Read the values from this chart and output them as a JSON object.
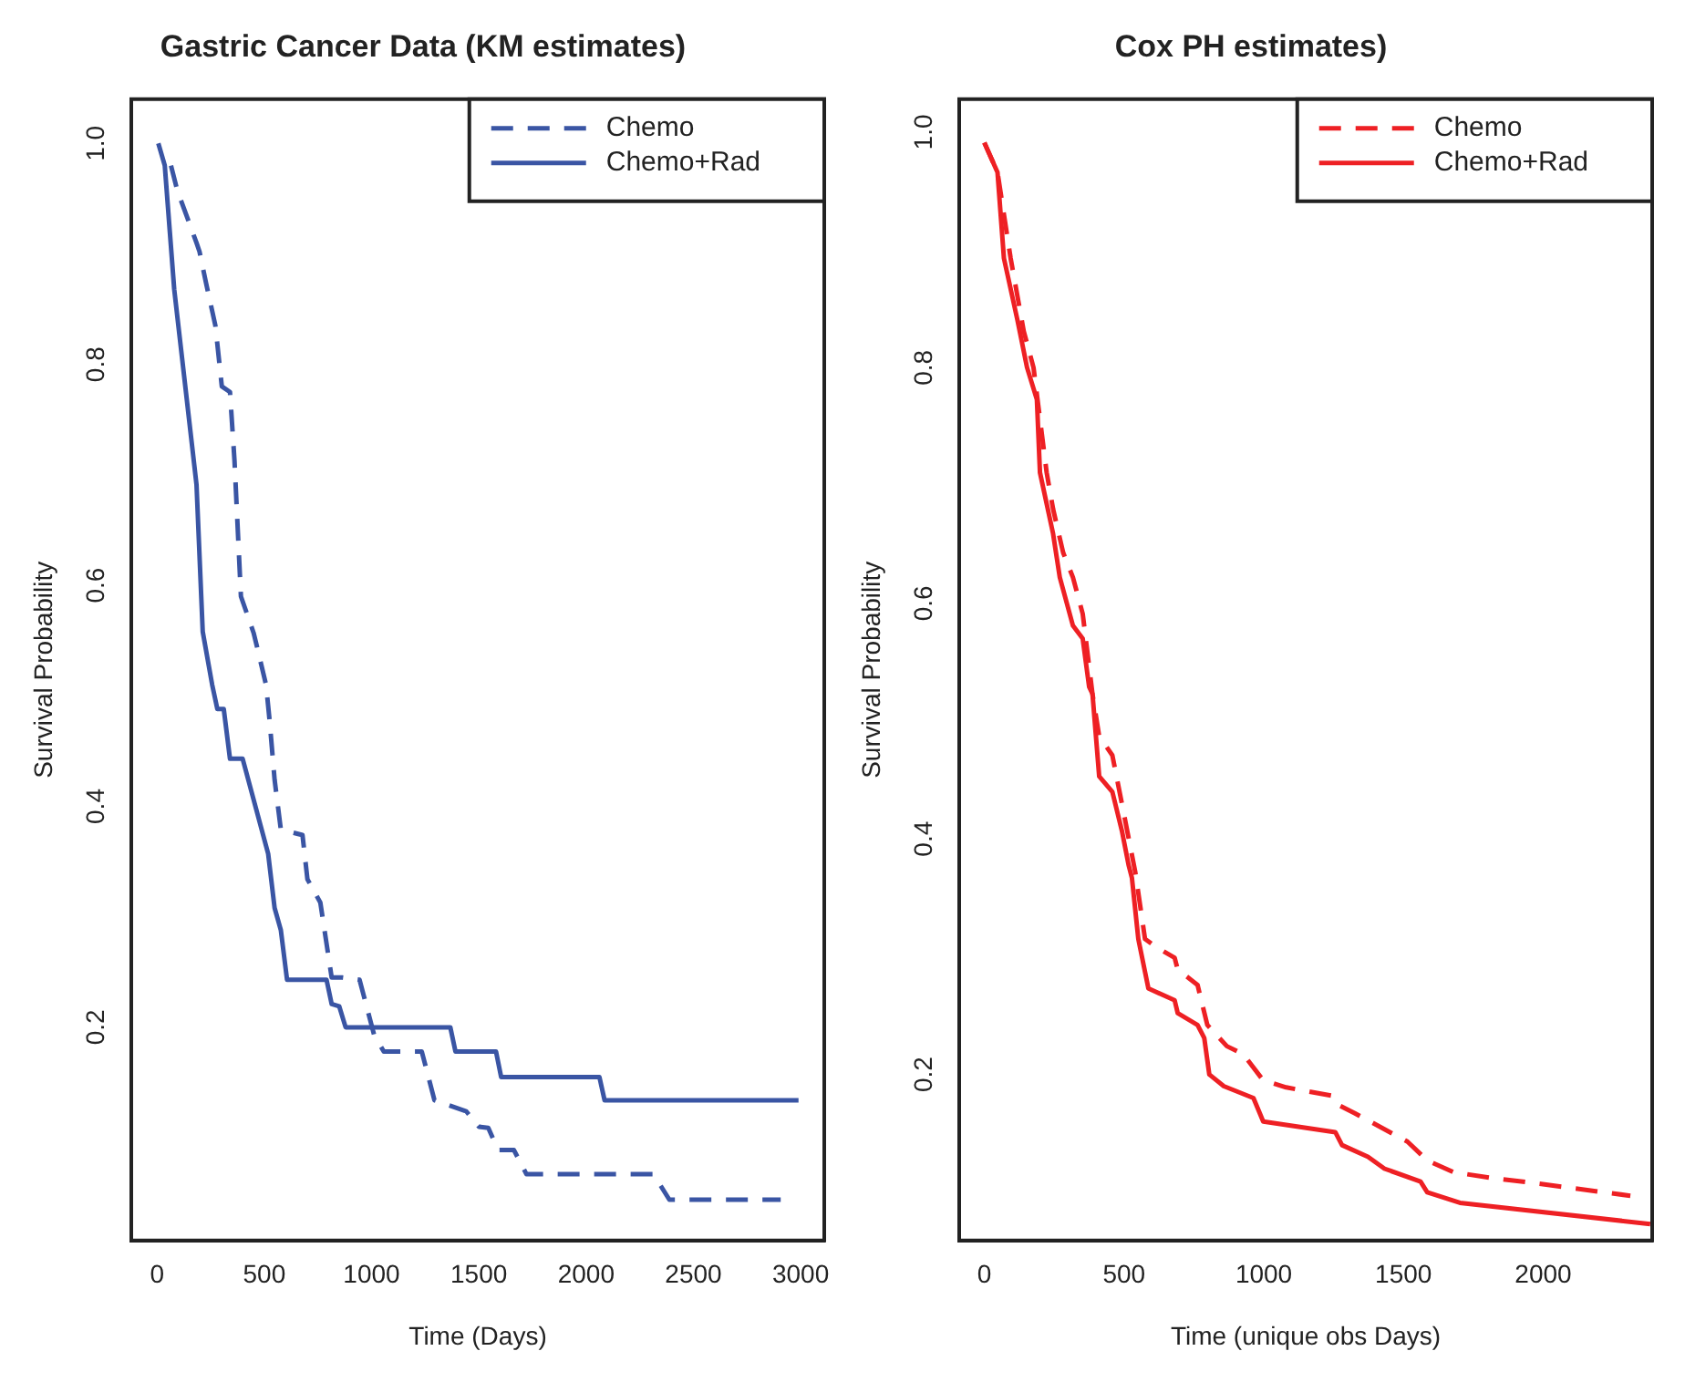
{
  "chart_data": [
    {
      "type": "line",
      "title": "Gastric Cancer Data (KM estimates)",
      "xlabel": "Time (Days)",
      "ylabel": "Survival Probability",
      "xlim": [
        -120,
        3110
      ],
      "ylim": [
        0.007,
        1.04
      ],
      "xticks": [
        0,
        500,
        1000,
        1500,
        2000,
        2500,
        3000
      ],
      "yticks": [
        {
          "value": 0.2,
          "label": "0.2"
        },
        {
          "value": 0.4,
          "label": "0.4"
        },
        {
          "value": 0.6,
          "label": "0.6"
        },
        {
          "value": 0.8,
          "label": "0.8"
        },
        {
          "value": 1,
          "label": "1.0"
        }
      ],
      "grid": false,
      "legend": "top right",
      "series": [
        {
          "name": "Chemo",
          "color": "#3a55a4",
          "line_style": "dashed",
          "x": [
            65,
            95,
            184,
            198,
            228,
            272,
            302,
            340,
            361,
            391,
            450,
            464,
            508,
            524,
            548,
            577,
            678,
            701,
            761,
            796,
            814,
            864,
            944,
            1012,
            1057,
            1234,
            1293,
            1441,
            1500,
            1544,
            1589,
            1663,
            1722,
            2314,
            2388,
            2907
          ],
          "values": [
            0.98,
            0.957,
            0.91,
            0.902,
            0.874,
            0.835,
            0.78,
            0.775,
            0.713,
            0.59,
            0.557,
            0.546,
            0.51,
            0.479,
            0.424,
            0.379,
            0.374,
            0.334,
            0.313,
            0.268,
            0.245,
            0.245,
            0.243,
            0.193,
            0.178,
            0.178,
            0.134,
            0.124,
            0.11,
            0.109,
            0.089,
            0.089,
            0.067,
            0.067,
            0.044,
            0.044
          ]
        },
        {
          "name": "Chemo+Rad",
          "color": "#3a55a4",
          "line_style": "solid",
          "x": [
            6,
            36,
            80,
            184,
            213,
            257,
            281,
            311,
            340,
            399,
            518,
            548,
            577,
            606,
            790,
            814,
            849,
            879,
            1367,
            1391,
            1580,
            1604,
            2062,
            2086,
            2990
          ],
          "values": [
            1.0,
            0.98,
            0.868,
            0.691,
            0.558,
            0.51,
            0.488,
            0.488,
            0.443,
            0.443,
            0.357,
            0.308,
            0.288,
            0.243,
            0.243,
            0.221,
            0.219,
            0.2,
            0.2,
            0.178,
            0.178,
            0.155,
            0.155,
            0.134,
            0.134
          ]
        }
      ]
    },
    {
      "type": "line",
      "title": "Cox PH estimates)",
      "xlabel": "Time (unique obs Days)",
      "ylabel": "Survival Probability",
      "xlim": [
        -90,
        2390
      ],
      "ylim": [
        0.059,
        1.028
      ],
      "xticks": [
        0,
        500,
        1000,
        1500,
        2000
      ],
      "yticks": [
        {
          "value": 0.2,
          "label": "0.2"
        },
        {
          "value": 0.4,
          "label": "0.4"
        },
        {
          "value": 0.6,
          "label": "0.6"
        },
        {
          "value": 0.8,
          "label": "0.8"
        },
        {
          "value": 1,
          "label": "1.0"
        }
      ],
      "grid": false,
      "legend": "top right",
      "series": [
        {
          "name": "Chemo",
          "color": "#ee2024",
          "line_style": "dashed",
          "x": [
            0,
            47,
            94,
            141,
            176,
            223,
            246,
            282,
            317,
            352,
            387,
            411,
            458,
            493,
            540,
            575,
            610,
            681,
            692,
            763,
            798,
            868,
            927,
            998,
            1080,
            1244,
            1268,
            1326,
            1514,
            1585,
            1679,
            1819,
            1960,
            2312
          ],
          "values": [
            0.991,
            0.966,
            0.893,
            0.831,
            0.8,
            0.711,
            0.68,
            0.643,
            0.622,
            0.591,
            0.523,
            0.487,
            0.471,
            0.429,
            0.372,
            0.315,
            0.309,
            0.299,
            0.289,
            0.276,
            0.242,
            0.224,
            0.217,
            0.195,
            0.189,
            0.182,
            0.174,
            0.167,
            0.143,
            0.127,
            0.117,
            0.112,
            0.108,
            0.097
          ]
        },
        {
          "name": "Chemo+Rad",
          "color": "#ee2024",
          "line_style": "solid",
          "x": [
            0,
            47,
            70,
            118,
            153,
            188,
            199,
            246,
            270,
            317,
            352,
            375,
            387,
            411,
            458,
            493,
            516,
            528,
            551,
            587,
            681,
            692,
            763,
            787,
            805,
            857,
            963,
            998,
            1256,
            1280,
            1373,
            1432,
            1561,
            1585,
            1702,
            2383
          ],
          "values": [
            0.991,
            0.966,
            0.893,
            0.841,
            0.8,
            0.773,
            0.711,
            0.659,
            0.622,
            0.581,
            0.57,
            0.529,
            0.523,
            0.453,
            0.44,
            0.406,
            0.378,
            0.367,
            0.315,
            0.273,
            0.263,
            0.252,
            0.242,
            0.231,
            0.2,
            0.19,
            0.18,
            0.16,
            0.151,
            0.14,
            0.13,
            0.12,
            0.109,
            0.1,
            0.091,
            0.073
          ]
        }
      ]
    }
  ]
}
